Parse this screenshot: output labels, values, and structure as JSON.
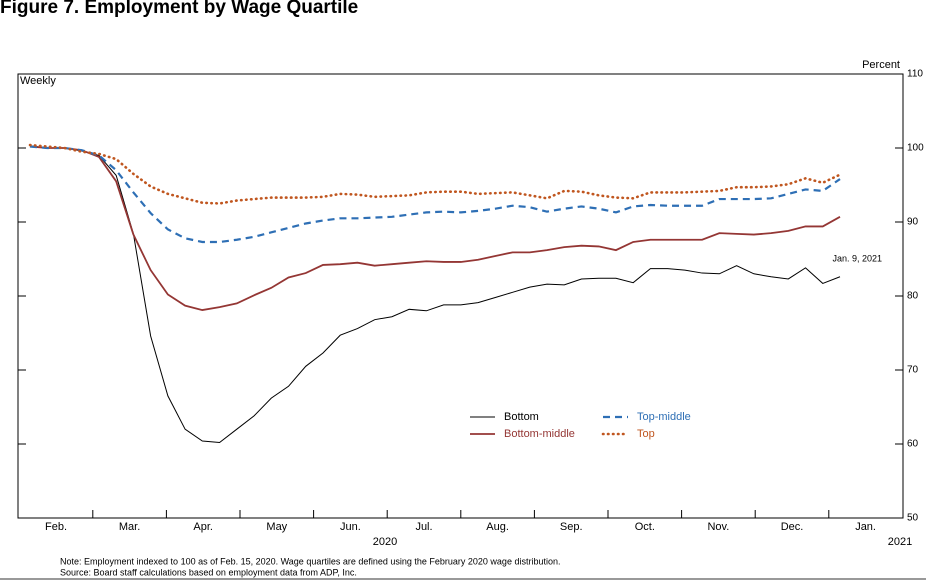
{
  "chart_data": {
    "type": "line",
    "title": "Figure 7. Employment by Wage Quartile",
    "y_label": "Weekly",
    "y2_label": "Percent",
    "annotation": "Jan. 9, 2021",
    "month_labels": [
      "Feb.",
      "Mar.",
      "Apr.",
      "May",
      "Jun.",
      "Jul.",
      "Aug.",
      "Sep.",
      "Oct.",
      "Nov.",
      "Dec.",
      "Jan."
    ],
    "year_labels": [
      "2020",
      "2021"
    ],
    "ylim": [
      50,
      110
    ],
    "yticks": [
      50,
      60,
      70,
      80,
      90,
      100,
      110
    ],
    "legend": "inside",
    "series": [
      {
        "name": "Bottom",
        "color": "#000000",
        "style": "solid",
        "values": [
          100.3,
          100,
          100,
          99.6,
          99,
          96.3,
          88.4,
          74.6,
          66.5,
          62,
          60.4,
          60.2,
          62,
          63.8,
          66.2,
          67.8,
          70.5,
          72.3,
          74.7,
          75.6,
          76.8,
          77.2,
          78.2,
          78,
          78.8,
          78.8,
          79.1,
          79.8,
          80.5,
          81.2,
          81.6,
          81.5,
          82.3,
          82.4,
          82.4,
          81.8,
          83.7,
          83.7,
          83.5,
          83.1,
          83,
          84.1,
          83,
          82.6,
          82.3,
          83.8,
          81.7,
          82.6
        ]
      },
      {
        "name": "Bottom-middle",
        "color": "#943634",
        "style": "solid",
        "values": [
          100.2,
          100,
          100,
          99.7,
          98.8,
          95.5,
          88.3,
          83.5,
          80.2,
          78.7,
          78.1,
          78.5,
          79,
          80.1,
          81.1,
          82.5,
          83.1,
          84.2,
          84.3,
          84.5,
          84.1,
          84.3,
          84.5,
          84.7,
          84.6,
          84.6,
          84.9,
          85.4,
          85.9,
          85.9,
          86.2,
          86.6,
          86.8,
          86.7,
          86.2,
          87.3,
          87.6,
          87.6,
          87.6,
          87.6,
          88.5,
          88.4,
          88.3,
          88.5,
          88.8,
          89.4,
          89.4,
          90.7
        ]
      },
      {
        "name": "Top-middle",
        "color": "#2e6fb5",
        "style": "dashed",
        "values": [
          100.2,
          100,
          100,
          99.7,
          99,
          97,
          94,
          91.2,
          89,
          87.8,
          87.3,
          87.3,
          87.6,
          88,
          88.6,
          89.2,
          89.8,
          90.2,
          90.5,
          90.5,
          90.6,
          90.7,
          91,
          91.3,
          91.4,
          91.3,
          91.5,
          91.8,
          92.2,
          92,
          91.4,
          91.8,
          92.1,
          91.8,
          91.3,
          92.1,
          92.3,
          92.2,
          92.2,
          92.2,
          93.1,
          93.1,
          93.1,
          93.2,
          93.8,
          94.4,
          94.2,
          95.8
        ]
      },
      {
        "name": "Top",
        "color": "#c0561f",
        "style": "dotted",
        "values": [
          100.4,
          100.2,
          100,
          99.5,
          99.2,
          98.5,
          96.5,
          94.8,
          93.8,
          93.2,
          92.6,
          92.5,
          92.9,
          93.1,
          93.3,
          93.3,
          93.3,
          93.4,
          93.8,
          93.7,
          93.4,
          93.5,
          93.6,
          94,
          94.1,
          94.1,
          93.8,
          93.9,
          94,
          93.6,
          93.2,
          94.2,
          94.1,
          93.6,
          93.3,
          93.2,
          94,
          94,
          94,
          94.1,
          94.2,
          94.7,
          94.7,
          94.8,
          95.1,
          95.9,
          95.3,
          96.4
        ]
      }
    ],
    "notes": [
      "Note: Employment indexed to 100 as of Feb. 15, 2020.  Wage quartiles are defined using the February 2020 wage distribution.",
      "Source: Board staff calculations based on employment data from ADP, Inc."
    ]
  }
}
